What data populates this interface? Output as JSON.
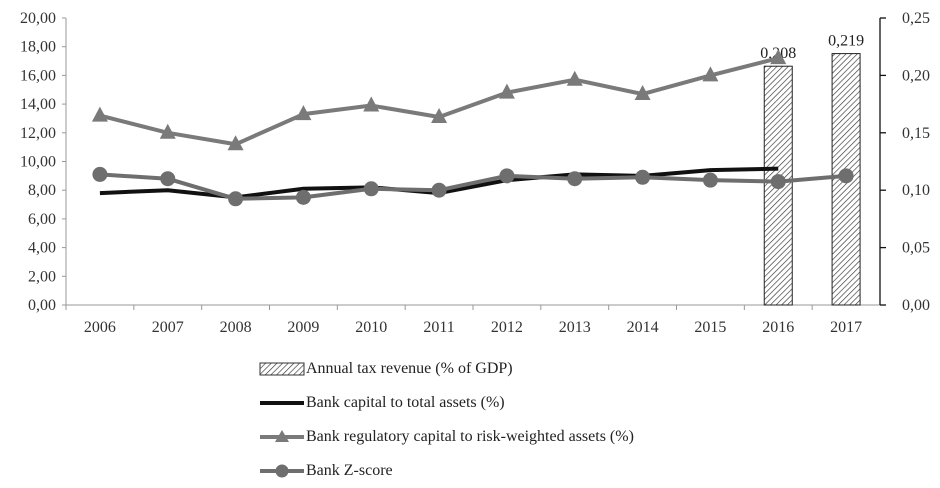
{
  "chart_data": {
    "type": "bar+line",
    "categories": [
      "2006",
      "2007",
      "2008",
      "2009",
      "2010",
      "2011",
      "2012",
      "2013",
      "2014",
      "2015",
      "2016",
      "2017"
    ],
    "y_left": {
      "ylim": [
        0,
        20
      ],
      "ticks": [
        "0,00",
        "2,00",
        "4,00",
        "6,00",
        "8,00",
        "10,00",
        "12,00",
        "14,00",
        "16,00",
        "18,00",
        "20,00"
      ]
    },
    "y_right": {
      "ylim": [
        0,
        0.25
      ],
      "ticks": [
        "0,00",
        "0,05",
        "0,10",
        "0,15",
        "0,20",
        "0,25"
      ]
    },
    "bars": {
      "name": "Annual tax revenue (% of GDP)",
      "axis": "right",
      "values": [
        null,
        null,
        null,
        null,
        null,
        null,
        null,
        null,
        null,
        null,
        0.208,
        0.219
      ],
      "labels": [
        "",
        "",
        "",
        "",
        "",
        "",
        "",
        "",
        "",
        "",
        "0,208",
        "0,219"
      ]
    },
    "series": [
      {
        "name": "Bank capital to total assets (%)",
        "axis": "left",
        "color": "#111111",
        "marker": "none",
        "values": [
          7.8,
          8.0,
          7.5,
          8.1,
          8.2,
          7.8,
          8.7,
          9.1,
          9.0,
          9.4,
          9.5,
          null
        ]
      },
      {
        "name": "Bank regulatory capital to risk-weighted assets (%)",
        "axis": "left",
        "color": "#7a7a7a",
        "marker": "triangle",
        "values": [
          13.2,
          12.0,
          11.2,
          13.3,
          13.9,
          13.1,
          14.8,
          15.7,
          14.7,
          16.0,
          17.2,
          null
        ]
      },
      {
        "name": "Bank Z-score",
        "axis": "left",
        "color": "#6e6e6e",
        "marker": "circle",
        "values": [
          9.1,
          8.8,
          7.4,
          7.5,
          8.1,
          8.0,
          9.0,
          8.8,
          8.9,
          8.7,
          8.6,
          9.0
        ]
      }
    ],
    "legend_position": "bottom",
    "grid": false
  }
}
